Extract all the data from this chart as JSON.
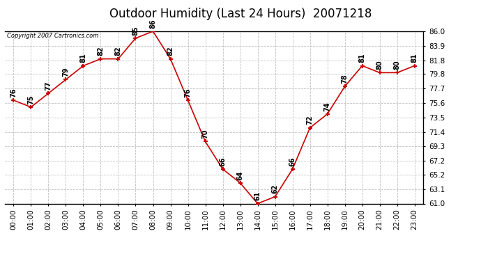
{
  "title": "Outdoor Humidity (Last 24 Hours)  20071218",
  "copyright": "Copyright 2007 Cartronics.com",
  "x_labels": [
    "00:00",
    "01:00",
    "02:00",
    "03:00",
    "04:00",
    "05:00",
    "06:00",
    "07:00",
    "08:00",
    "09:00",
    "10:00",
    "11:00",
    "12:00",
    "13:00",
    "14:00",
    "15:00",
    "16:00",
    "17:00",
    "18:00",
    "19:00",
    "20:00",
    "21:00",
    "22:00",
    "23:00"
  ],
  "y_values": [
    76,
    75,
    77,
    79,
    81,
    82,
    82,
    85,
    86,
    82,
    76,
    70,
    66,
    64,
    61,
    62,
    66,
    72,
    74,
    78,
    81,
    80,
    80,
    81
  ],
  "ylim": [
    61.0,
    86.0
  ],
  "yticks": [
    61.0,
    63.1,
    65.2,
    67.2,
    69.3,
    71.4,
    73.5,
    75.6,
    77.7,
    79.8,
    81.8,
    83.9,
    86.0
  ],
  "line_color": "#cc0000",
  "marker_color": "#cc0000",
  "bg_color": "#ffffff",
  "grid_color": "#c0c0c0",
  "title_fontsize": 12,
  "label_fontsize": 7.5,
  "annotation_fontsize": 7,
  "fig_width": 6.9,
  "fig_height": 3.75,
  "dpi": 100
}
